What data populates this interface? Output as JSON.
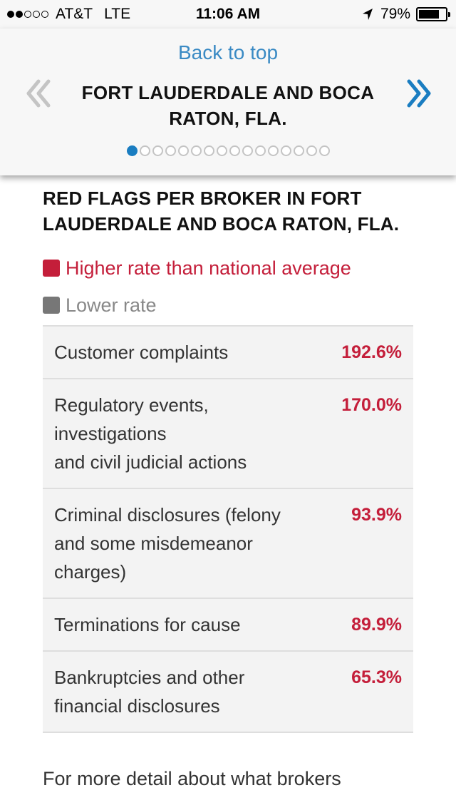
{
  "status_bar": {
    "carrier": "AT&T",
    "network": "LTE",
    "time": "11:06 AM",
    "battery_text": "79%",
    "battery_level": 0.79,
    "signal_bars_filled": 2,
    "signal_bars_total": 5
  },
  "header": {
    "back_to_top": "Back to top",
    "title": "FORT LAUDERDALE AND BOCA RATON, FLA.",
    "pager_total": 16,
    "pager_active_index": 0,
    "accent_color": "#1a7dc1"
  },
  "section": {
    "title": "RED FLAGS PER BROKER IN FORT LAUDERDALE AND BOCA RATON, FLA."
  },
  "legend": {
    "higher": {
      "label": "Higher rate than national average",
      "color": "#c41e3a"
    },
    "lower": {
      "label": "Lower rate",
      "color": "#777777"
    }
  },
  "flags": [
    {
      "label": "Customer complaints",
      "value": "192.6%"
    },
    {
      "label": "Regulatory events, investigations\nand civil judicial actions",
      "value": "170.0%"
    },
    {
      "label": "Criminal disclosures (felony and some misdemeanor charges)",
      "value": "93.9%"
    },
    {
      "label": "Terminations for cause",
      "value": "89.9%"
    },
    {
      "label": "Bankruptcies and other financial disclosures",
      "value": "65.3%"
    }
  ],
  "footer_text": "For more detail about what brokers"
}
